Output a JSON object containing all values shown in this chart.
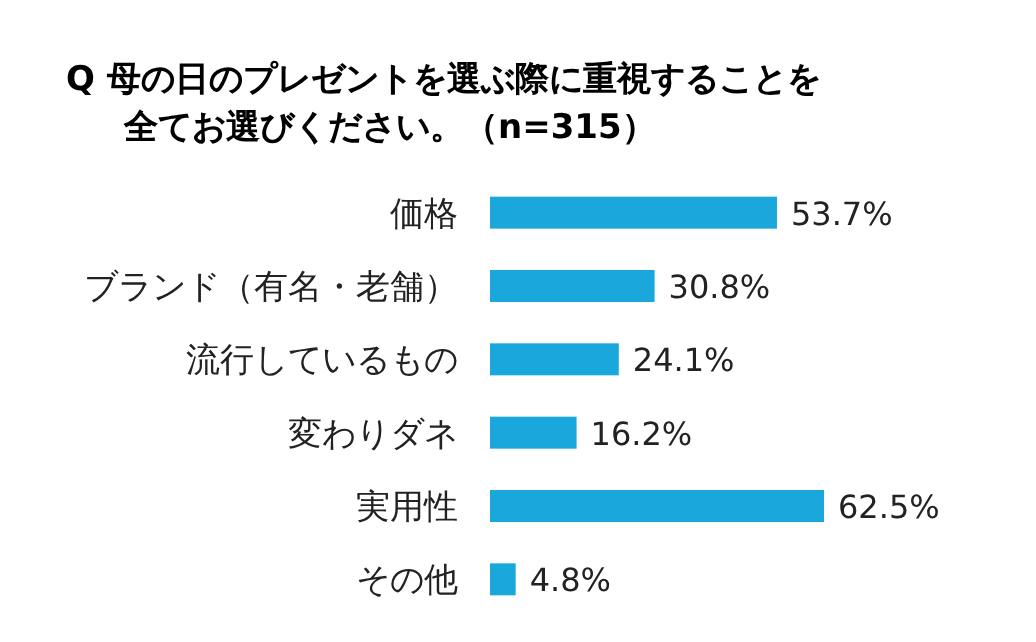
{
  "chart_data": {
    "type": "bar",
    "orientation": "horizontal",
    "title": "Q  母の日のプレゼントを選ぶ際に重視することを全てお選びください。（n=315）",
    "categories": [
      "価格",
      "ブランド（有名・老舗）",
      "流行しているもの",
      "変わりダネ",
      "実用性",
      "その他"
    ],
    "values": [
      53.7,
      30.8,
      24.1,
      16.2,
      62.5,
      4.8
    ],
    "value_labels": [
      "53.7%",
      "30.8%",
      "24.1%",
      "16.2%",
      "62.5%",
      "4.8%"
    ],
    "color": "#1aa7dc"
  }
}
